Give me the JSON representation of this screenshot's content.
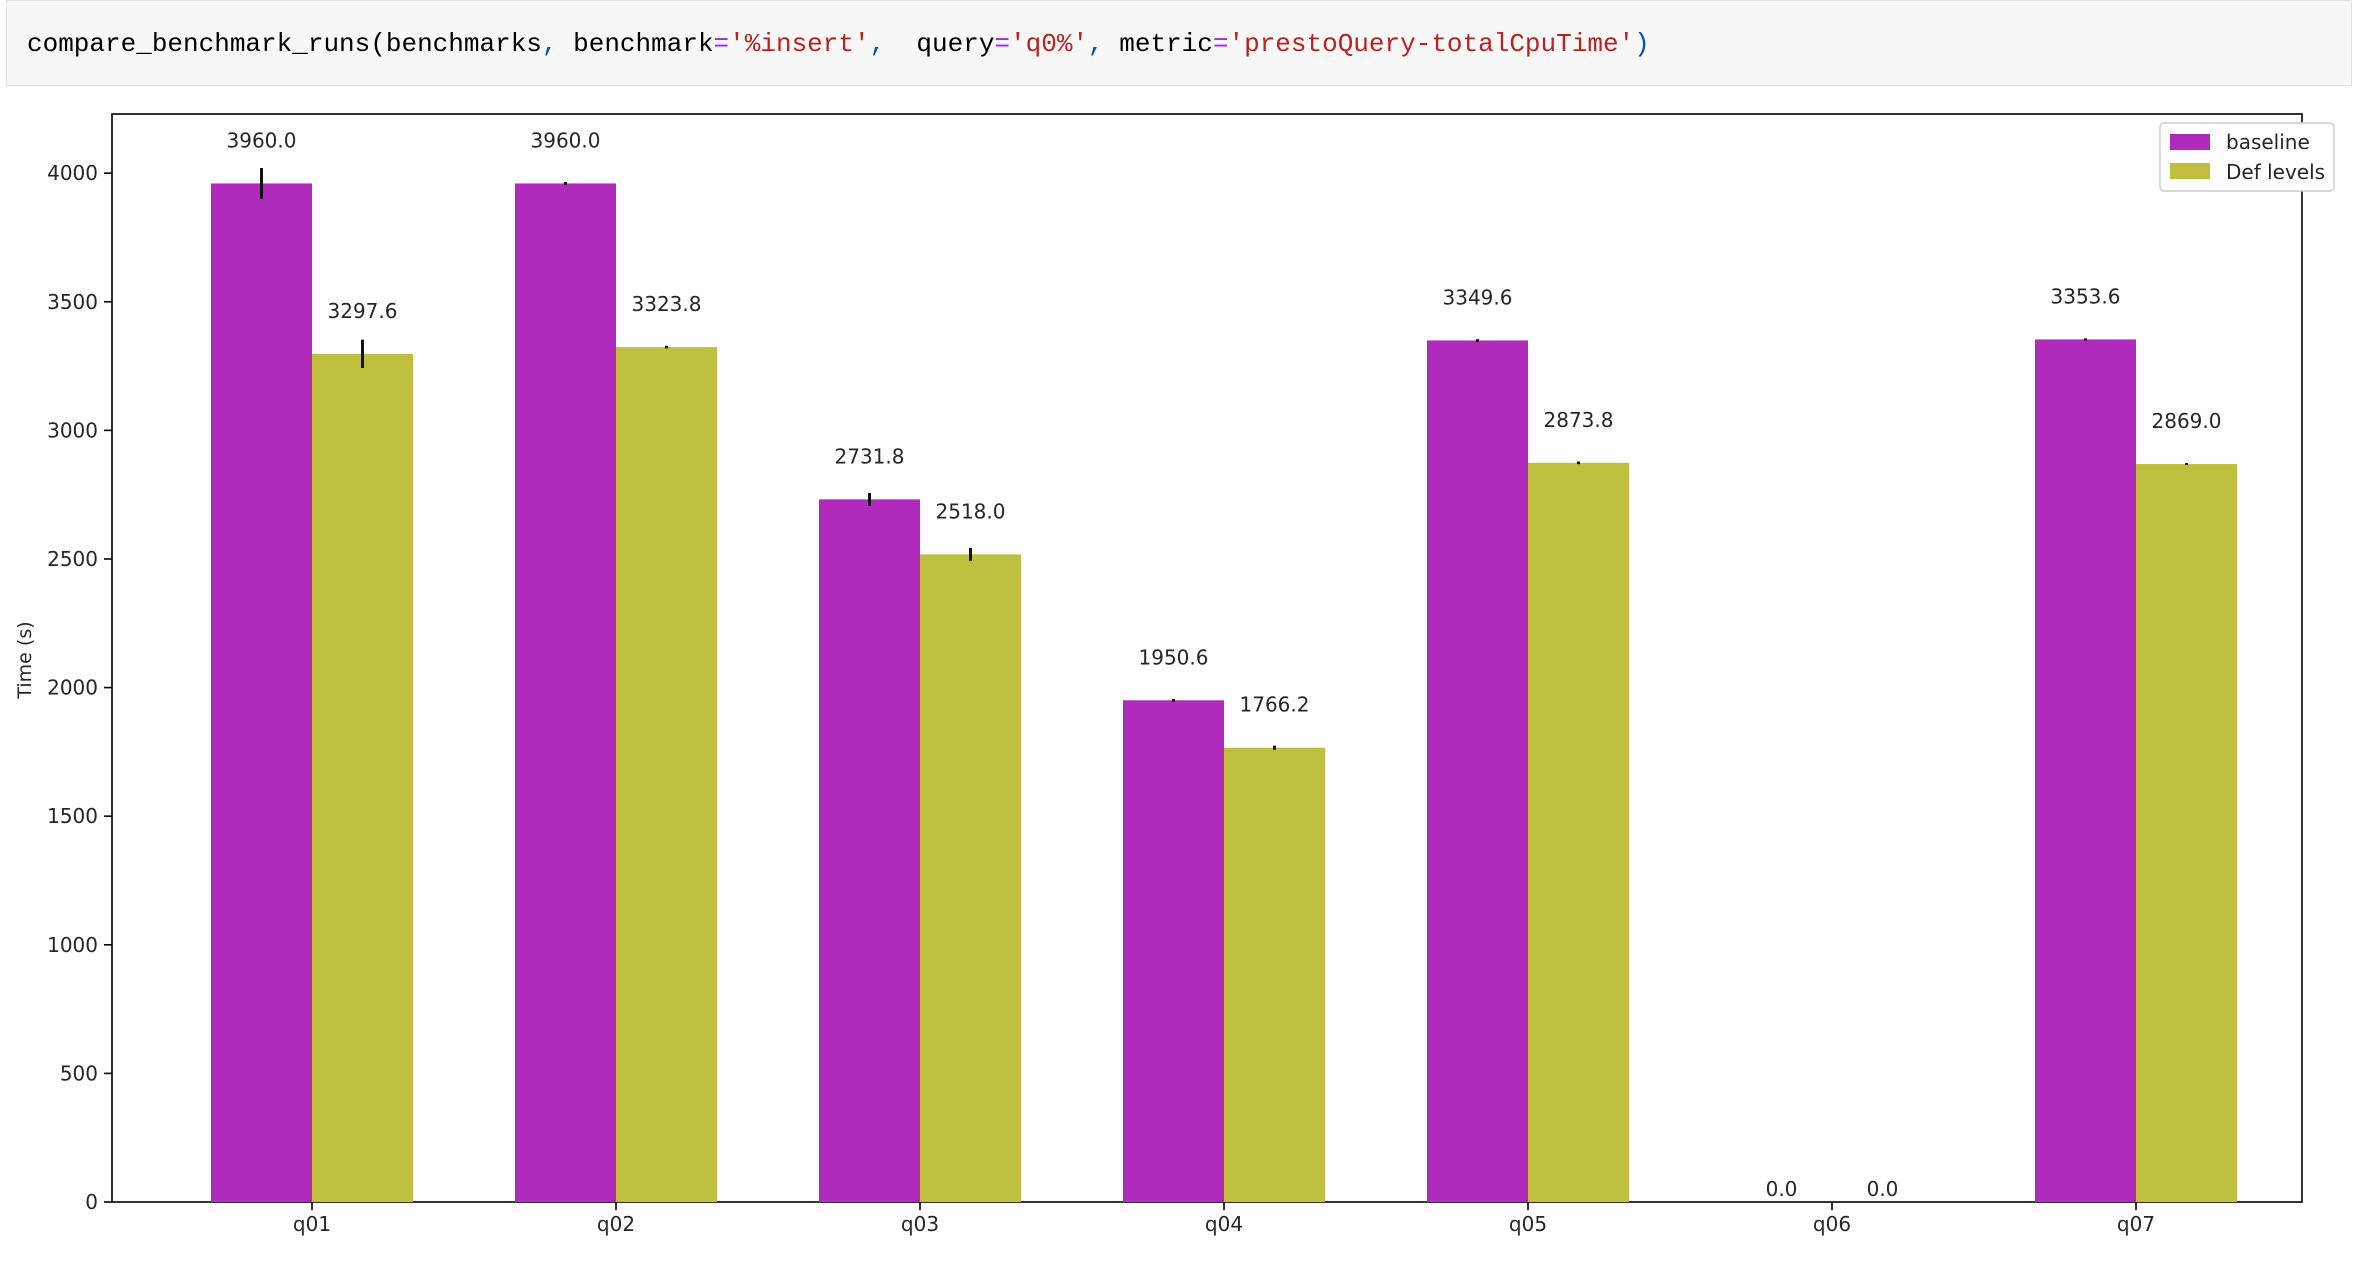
{
  "code_cell": {
    "function_name": "compare_benchmark_runs",
    "open_paren": "(",
    "arg_benchmarks": "benchmarks",
    "comma1": ",",
    "kw_benchmark": " benchmark",
    "eq1": "=",
    "val_benchmark": "'%insert'",
    "comma2": ",",
    "kw_query": "  query",
    "eq2": "=",
    "val_query": "'q0%'",
    "comma3": ",",
    "kw_metric": " metric",
    "eq3": "=",
    "val_metric": "'prestoQuery-totalCpuTime'",
    "close_paren": ")"
  },
  "colors": {
    "baseline": "#b02abc",
    "def_levels": "#bfbf3f",
    "error_bar": "#111111",
    "axis": "#000000",
    "text": "#262626"
  },
  "chart_data": {
    "type": "bar",
    "title": "",
    "xlabel": "",
    "ylabel": "Time (s)",
    "ylim": [
      0,
      4230
    ],
    "yticks": [
      0,
      500,
      1000,
      1500,
      2000,
      2500,
      3000,
      3500,
      4000
    ],
    "categories": [
      "q01",
      "q02",
      "q03",
      "q04",
      "q05",
      "q06",
      "q07"
    ],
    "series": [
      {
        "name": "baseline",
        "values": [
          3960.0,
          3960.0,
          2731.8,
          1950.6,
          3349.6,
          0.0,
          3353.6
        ],
        "errors": [
          60,
          0,
          25,
          5,
          5,
          0,
          4
        ],
        "labels": [
          "3960.0",
          "3960.0",
          "2731.8",
          "1950.6",
          "3349.6",
          "0.0",
          "3353.6"
        ]
      },
      {
        "name": "Def levels",
        "values": [
          3297.6,
          3323.8,
          2518.0,
          1766.2,
          2873.8,
          0.0,
          2869.0
        ],
        "errors": [
          55,
          5,
          25,
          8,
          5,
          0,
          4
        ],
        "labels": [
          "3297.6",
          "3323.8",
          "2518.0",
          "1766.2",
          "2873.8",
          "0.0",
          "2869.0"
        ]
      }
    ],
    "legend_position": "top-right",
    "grid": false
  }
}
